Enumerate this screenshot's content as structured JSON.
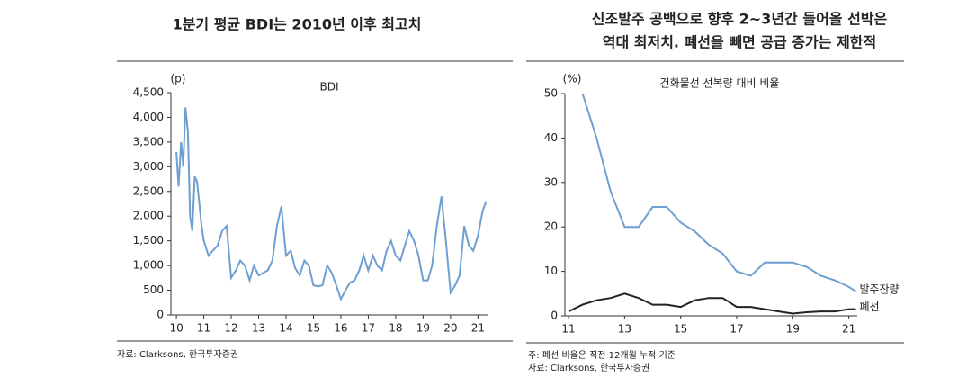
{
  "chart_data": [
    {
      "type": "line",
      "title": [
        "1분기 평균 BDI는 2010년 이후 최고치"
      ],
      "unit": "(p)",
      "notes": [
        "자료: Clarksons, 한국투자증권"
      ],
      "xlim": [
        9.8,
        21.35
      ],
      "xticks": [
        10,
        11,
        12,
        13,
        14,
        15,
        16,
        17,
        18,
        19,
        20,
        21
      ],
      "ylim": [
        0,
        4500
      ],
      "yticks": [
        0,
        500,
        {
          "value": 1000,
          "label": "1,000"
        },
        {
          "value": 1500,
          "label": "1,500"
        },
        {
          "value": 2000,
          "label": "2,000"
        },
        {
          "value": 2500,
          "label": "2,500"
        },
        {
          "value": 3000,
          "label": "3,000"
        },
        {
          "value": 3500,
          "label": "3,500"
        },
        {
          "value": 4000,
          "label": "4,000"
        },
        {
          "value": 4500,
          "label": "4,500"
        }
      ],
      "legend": "top",
      "series": [
        {
          "name": "BDI",
          "color": "#6f9fd0",
          "x": [
            10.0,
            10.08,
            10.17,
            10.25,
            10.33,
            10.42,
            10.5,
            10.58,
            10.67,
            10.75,
            10.83,
            10.92,
            11.0,
            11.17,
            11.33,
            11.5,
            11.67,
            11.83,
            12.0,
            12.17,
            12.33,
            12.5,
            12.67,
            12.83,
            13.0,
            13.17,
            13.33,
            13.5,
            13.67,
            13.83,
            14.0,
            14.17,
            14.33,
            14.5,
            14.67,
            14.83,
            15.0,
            15.17,
            15.33,
            15.5,
            15.67,
            15.83,
            16.0,
            16.17,
            16.33,
            16.5,
            16.67,
            16.83,
            17.0,
            17.17,
            17.33,
            17.5,
            17.67,
            17.83,
            18.0,
            18.17,
            18.33,
            18.5,
            18.67,
            18.83,
            19.0,
            19.17,
            19.33,
            19.5,
            19.67,
            19.83,
            20.0,
            20.17,
            20.33,
            20.5,
            20.67,
            20.83,
            21.0,
            21.17,
            21.3
          ],
          "values": [
            3300,
            2600,
            3500,
            3000,
            4200,
            3700,
            2000,
            1700,
            2800,
            2700,
            2300,
            1800,
            1500,
            1200,
            1300,
            1400,
            1700,
            1800,
            750,
            900,
            1100,
            1000,
            700,
            1000,
            800,
            850,
            900,
            1100,
            1800,
            2200,
            1200,
            1300,
            950,
            800,
            1100,
            1000,
            600,
            580,
            600,
            1000,
            850,
            600,
            320,
            500,
            650,
            700,
            900,
            1200,
            900,
            1200,
            1000,
            900,
            1300,
            1500,
            1200,
            1100,
            1400,
            1700,
            1500,
            1200,
            700,
            700,
            1000,
            1800,
            2400,
            1500,
            450,
            600,
            800,
            1800,
            1400,
            1300,
            1600,
            2100,
            2300
          ]
        }
      ]
    },
    {
      "type": "line",
      "title": [
        "신조발주 공백으로 향후 2~3년간 들어올 선박은",
        "역대 최저치. 폐선을 빼면 공급 증가는 제한적"
      ],
      "unit": "(%)",
      "subtitle": "건화물선 선복량 대비 비율",
      "notes": [
        "주: 폐선 비율은 직전 12개월 누적 기준",
        "자료: Clarksons, 한국투자증권"
      ],
      "xlim": [
        10.87,
        21.3
      ],
      "xticks": [
        11,
        13,
        15,
        17,
        19,
        21
      ],
      "ylim": [
        0,
        50
      ],
      "yticks": [
        0,
        10,
        20,
        30,
        40,
        50
      ],
      "legend": "line-end",
      "series": [
        {
          "name": "발주잔량",
          "color": "#6f9fd0",
          "x": [
            11.5,
            12,
            12.5,
            13,
            13.5,
            14,
            14.5,
            15,
            15.5,
            16,
            16.5,
            17,
            17.5,
            18,
            18.5,
            19,
            19.5,
            20,
            20.5,
            21,
            21.25
          ],
          "values": [
            50,
            40,
            28,
            20,
            20,
            24.5,
            24.5,
            21,
            19,
            16,
            14,
            10,
            9,
            12,
            12,
            12,
            11,
            9,
            8,
            6.5,
            5.5
          ]
        },
        {
          "name": "폐선",
          "color": "#222222",
          "x": [
            11,
            11.5,
            12,
            12.5,
            13,
            13.5,
            14,
            14.5,
            15,
            15.5,
            16,
            16.5,
            17,
            17.5,
            18,
            18.5,
            19,
            19.5,
            20,
            20.5,
            21,
            21.25
          ],
          "values": [
            1,
            2.5,
            3.5,
            4,
            5,
            4,
            2.5,
            2.5,
            2,
            3.5,
            4,
            4,
            2,
            2,
            1.5,
            1,
            0.5,
            0.8,
            1,
            1,
            1.5,
            1.5
          ]
        }
      ]
    }
  ]
}
